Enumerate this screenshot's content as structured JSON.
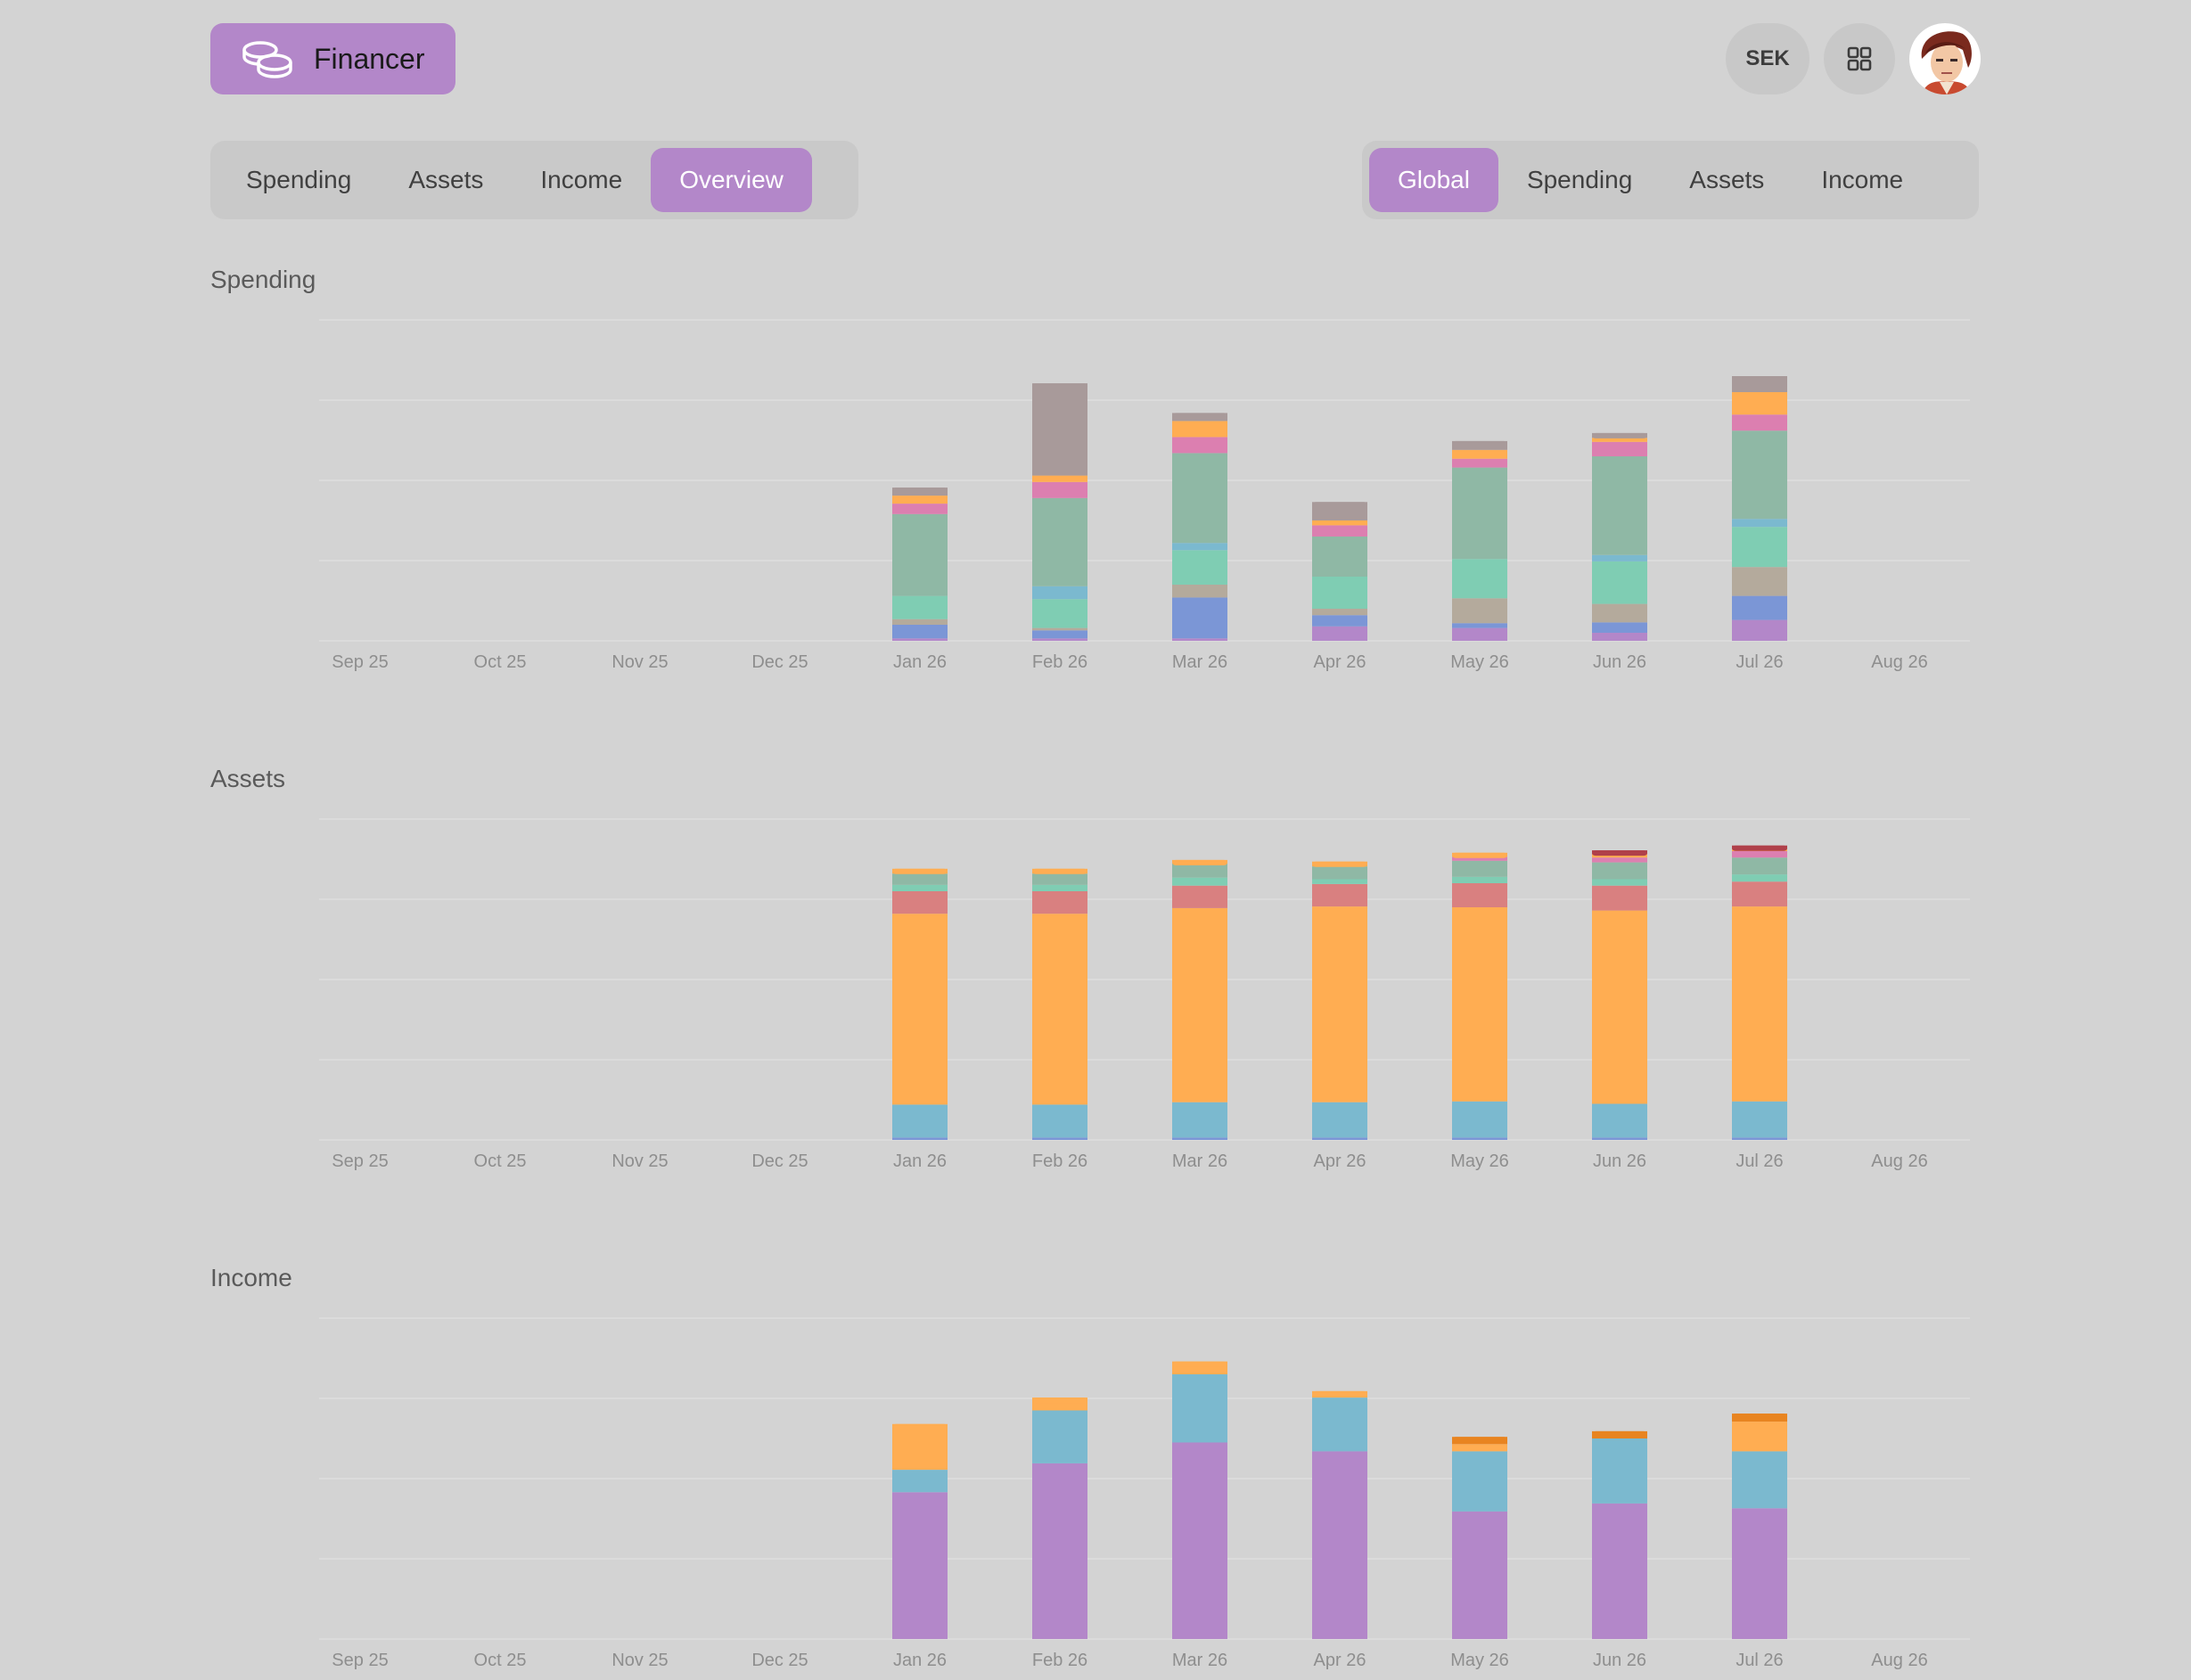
{
  "app": {
    "name": "Financer"
  },
  "header": {
    "currency": "SEK",
    "grid_icon": "grid-icon",
    "avatar_icon": "avatar"
  },
  "left_tabs": [
    "Spending",
    "Assets",
    "Income",
    "Overview"
  ],
  "left_active": 3,
  "right_tabs": [
    "Global",
    "Spending",
    "Assets",
    "Income"
  ],
  "right_active": 0,
  "sections": {
    "spending": "Spending",
    "assets": "Assets",
    "income": "Income"
  },
  "months": [
    "Sep 25",
    "Oct 25",
    "Nov 25",
    "Dec 25",
    "Jan 26",
    "Feb 26",
    "Mar 26",
    "Apr 26",
    "May 26",
    "Jun 26",
    "Jul 26",
    "Aug 26"
  ],
  "chart_data": [
    {
      "type": "bar",
      "stacked": true,
      "title": "Spending",
      "categories": [
        "Sep 25",
        "Oct 25",
        "Nov 25",
        "Dec 25",
        "Jan 26",
        "Feb 26",
        "Mar 26",
        "Apr 26",
        "May 26",
        "Jun 26",
        "Jul 26",
        "Aug 26"
      ],
      "ylim": [
        0,
        40
      ],
      "series": [
        {
          "color": "#b387c9",
          "values": [
            0,
            0,
            0,
            0,
            0.3,
            0.3,
            0.3,
            1.8,
            1.6,
            1.0,
            2.6,
            0
          ]
        },
        {
          "color": "#7b96d6",
          "values": [
            0,
            0,
            0,
            0,
            1.7,
            1.0,
            5.1,
            1.4,
            0.6,
            1.3,
            3.0,
            0
          ]
        },
        {
          "color": "#b4aa9c",
          "values": [
            0,
            0,
            0,
            0,
            0.7,
            0.3,
            1.6,
            0.8,
            3.1,
            2.3,
            3.6,
            0
          ]
        },
        {
          "color": "#7fcdb3",
          "values": [
            0,
            0,
            0,
            0,
            2.9,
            3.6,
            4.3,
            4.0,
            4.9,
            5.3,
            5.0,
            0
          ]
        },
        {
          "color": "#7bb9cf",
          "values": [
            0,
            0,
            0,
            0,
            0,
            1.6,
            0.9,
            0,
            0,
            0.8,
            1.0,
            0
          ]
        },
        {
          "color": "#8fb8a5",
          "values": [
            0,
            0,
            0,
            0,
            10.2,
            11.0,
            11.2,
            5.0,
            11.4,
            12.3,
            11.0,
            0
          ]
        },
        {
          "color": "#dc7fb0",
          "values": [
            0,
            0,
            0,
            0,
            1.3,
            2.0,
            2.0,
            1.4,
            1.1,
            1.8,
            2.0,
            0
          ]
        },
        {
          "color": "#ffad52",
          "values": [
            0,
            0,
            0,
            0,
            1.0,
            0.8,
            2.0,
            0.6,
            1.1,
            0.5,
            2.8,
            0
          ]
        },
        {
          "color": "#a89a9a",
          "values": [
            0,
            0,
            0,
            0,
            1.0,
            11.5,
            1.0,
            2.3,
            1.1,
            0.6,
            2.0,
            0
          ]
        }
      ]
    },
    {
      "type": "bar",
      "stacked": true,
      "title": "Assets",
      "categories": [
        "Sep 25",
        "Oct 25",
        "Nov 25",
        "Dec 25",
        "Jan 26",
        "Feb 26",
        "Mar 26",
        "Apr 26",
        "May 26",
        "Jun 26",
        "Jul 26",
        "Aug 26"
      ],
      "ylim": [
        0,
        40
      ],
      "series": [
        {
          "color": "#7b96d6",
          "values": [
            0,
            0,
            0,
            0,
            0.3,
            0.3,
            0.3,
            0.3,
            0.3,
            0.3,
            0.3,
            0
          ]
        },
        {
          "color": "#7bb9cf",
          "values": [
            0,
            0,
            0,
            0,
            4.1,
            4.1,
            4.4,
            4.4,
            4.5,
            4.2,
            4.5,
            0
          ]
        },
        {
          "color": "#ffad52",
          "values": [
            0,
            0,
            0,
            0,
            23.8,
            23.8,
            24.2,
            24.4,
            24.2,
            24.1,
            24.3,
            0
          ]
        },
        {
          "color": "#d98080",
          "values": [
            0,
            0,
            0,
            0,
            2.8,
            2.8,
            2.8,
            2.8,
            3.0,
            3.1,
            3.1,
            0
          ]
        },
        {
          "color": "#7fcdb3",
          "values": [
            0,
            0,
            0,
            0,
            0.8,
            0.8,
            1.0,
            0.6,
            0.8,
            0.8,
            0.9,
            0
          ]
        },
        {
          "color": "#8fb8a5",
          "values": [
            0,
            0,
            0,
            0,
            1.4,
            1.4,
            1.8,
            1.6,
            2.0,
            2.1,
            2.1,
            0
          ]
        },
        {
          "color": "#dc7fb0",
          "values": [
            0,
            0,
            0,
            0,
            0,
            0,
            0,
            0,
            0.5,
            0.6,
            0.8,
            0
          ]
        },
        {
          "color": "#ffad52",
          "values": [
            0,
            0,
            0,
            0,
            0.6,
            0.6,
            0.4,
            0.6,
            0.5,
            0.5,
            0.3,
            0
          ]
        },
        {
          "color": "#b0404a",
          "values": [
            0,
            0,
            0,
            0,
            0,
            0,
            0,
            0,
            0,
            0.4,
            0.4,
            0
          ]
        }
      ]
    },
    {
      "type": "bar",
      "stacked": true,
      "title": "Income",
      "categories": [
        "Sep 25",
        "Oct 25",
        "Nov 25",
        "Dec 25",
        "Jan 26",
        "Feb 26",
        "Mar 26",
        "Apr 26",
        "May 26",
        "Jun 26",
        "Jul 26",
        "Aug 26"
      ],
      "ylim": [
        0,
        40
      ],
      "series": [
        {
          "color": "#b387c9",
          "values": [
            0,
            0,
            0,
            0,
            18.3,
            21.9,
            24.5,
            23.4,
            15.9,
            16.9,
            16.3,
            0
          ]
        },
        {
          "color": "#7bb9cf",
          "values": [
            0,
            0,
            0,
            0,
            2.8,
            6.6,
            8.5,
            6.7,
            7.5,
            8.1,
            7.1,
            0
          ]
        },
        {
          "color": "#ffad52",
          "values": [
            0,
            0,
            0,
            0,
            5.7,
            1.6,
            1.6,
            0.8,
            0.9,
            0,
            3.7,
            0
          ]
        },
        {
          "color": "#e88420",
          "values": [
            0,
            0,
            0,
            0,
            0,
            0,
            0,
            0,
            0.9,
            0.9,
            1.0,
            0
          ]
        }
      ]
    }
  ]
}
